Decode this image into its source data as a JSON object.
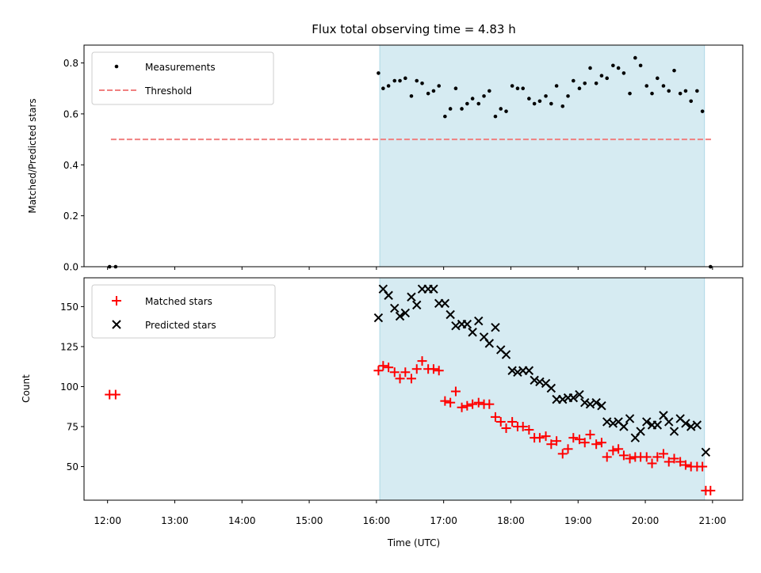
{
  "title": "Flux total observing time = 4.83 h",
  "xlabel": "Time (UTC)",
  "x_ticks": [
    "12:00",
    "13:00",
    "14:00",
    "15:00",
    "16:00",
    "17:00",
    "18:00",
    "19:00",
    "20:00",
    "21:00"
  ],
  "colors": {
    "measurements": "#000000",
    "threshold": "#f08080",
    "matched": "#ff0000",
    "predicted": "#000000",
    "observing_window": "#add8e6"
  },
  "chart_data": [
    {
      "type": "scatter",
      "ylabel": "Matched/Predicted stars",
      "xlim": [
        11.65,
        21.45
      ],
      "ylim": [
        0,
        0.87
      ],
      "y_ticks": [
        0.0,
        0.2,
        0.4,
        0.6,
        0.8
      ],
      "y_tick_labels": [
        "0.0",
        "0.2",
        "0.4",
        "0.6",
        "0.8"
      ],
      "observing_window": [
        16.05,
        20.88
      ],
      "legend": {
        "placement": "upper-left",
        "entries": [
          "Measurements",
          "Threshold"
        ]
      },
      "threshold": {
        "name": "Threshold",
        "value": 0.5,
        "x_range": [
          12.05,
          20.98
        ]
      },
      "series": [
        {
          "name": "Measurements",
          "x": [
            12.03,
            12.12,
            16.03,
            16.1,
            16.18,
            16.27,
            16.35,
            16.43,
            16.52,
            16.6,
            16.68,
            16.77,
            16.85,
            16.93,
            17.02,
            17.1,
            17.18,
            17.27,
            17.35,
            17.43,
            17.52,
            17.6,
            17.68,
            17.77,
            17.85,
            17.93,
            18.02,
            18.1,
            18.18,
            18.27,
            18.35,
            18.43,
            18.52,
            18.6,
            18.68,
            18.77,
            18.85,
            18.93,
            19.02,
            19.1,
            19.18,
            19.27,
            19.35,
            19.43,
            19.52,
            19.6,
            19.68,
            19.77,
            19.85,
            19.93,
            20.02,
            20.1,
            20.18,
            20.27,
            20.35,
            20.43,
            20.52,
            20.6,
            20.68,
            20.77,
            20.85,
            20.97
          ],
          "y": [
            0.0,
            0.0,
            0.76,
            0.7,
            0.71,
            0.73,
            0.73,
            0.74,
            0.67,
            0.73,
            0.72,
            0.68,
            0.69,
            0.71,
            0.59,
            0.62,
            0.7,
            0.62,
            0.64,
            0.66,
            0.64,
            0.67,
            0.69,
            0.59,
            0.62,
            0.61,
            0.71,
            0.7,
            0.7,
            0.66,
            0.64,
            0.65,
            0.67,
            0.64,
            0.71,
            0.63,
            0.67,
            0.73,
            0.7,
            0.72,
            0.78,
            0.72,
            0.75,
            0.74,
            0.79,
            0.78,
            0.76,
            0.68,
            0.82,
            0.79,
            0.71,
            0.68,
            0.74,
            0.71,
            0.69,
            0.77,
            0.68,
            0.69,
            0.65,
            0.69,
            0.61,
            0.0
          ]
        }
      ]
    },
    {
      "type": "scatter",
      "ylabel": "Count",
      "xlim": [
        11.65,
        21.45
      ],
      "ylim": [
        29,
        168
      ],
      "y_ticks": [
        50,
        75,
        100,
        125,
        150
      ],
      "y_tick_labels": [
        "50",
        "75",
        "100",
        "125",
        "150"
      ],
      "observing_window": [
        16.05,
        20.88
      ],
      "legend": {
        "placement": "upper-left",
        "entries": [
          "Matched stars",
          "Predicted stars"
        ]
      },
      "series": [
        {
          "name": "Matched stars",
          "marker": "plus",
          "x": [
            12.03,
            12.12,
            16.03,
            16.1,
            16.18,
            16.27,
            16.35,
            16.43,
            16.52,
            16.6,
            16.68,
            16.77,
            16.85,
            16.93,
            17.02,
            17.1,
            17.18,
            17.27,
            17.35,
            17.43,
            17.52,
            17.6,
            17.68,
            17.77,
            17.85,
            17.93,
            18.02,
            18.1,
            18.18,
            18.27,
            18.35,
            18.43,
            18.52,
            18.6,
            18.68,
            18.77,
            18.85,
            18.93,
            19.02,
            19.1,
            19.18,
            19.27,
            19.35,
            19.43,
            19.52,
            19.6,
            19.68,
            19.77,
            19.85,
            19.93,
            20.02,
            20.1,
            20.18,
            20.27,
            20.35,
            20.43,
            20.52,
            20.6,
            20.68,
            20.77,
            20.85,
            20.9,
            20.97
          ],
          "y": [
            95,
            95,
            110,
            113,
            112,
            109,
            105,
            109,
            105,
            111,
            116,
            111,
            111,
            110,
            91,
            90,
            97,
            87,
            88,
            89,
            90,
            89,
            89,
            81,
            78,
            74,
            78,
            75,
            75,
            73,
            68,
            68,
            69,
            64,
            66,
            58,
            61,
            68,
            67,
            65,
            70,
            64,
            65,
            56,
            60,
            61,
            57,
            55,
            56,
            56,
            56,
            52,
            56,
            58,
            53,
            55,
            53,
            51,
            50,
            50,
            50,
            35,
            35
          ]
        },
        {
          "name": "Predicted stars",
          "marker": "x",
          "x": [
            16.03,
            16.1,
            16.18,
            16.27,
            16.35,
            16.43,
            16.52,
            16.6,
            16.68,
            16.77,
            16.85,
            16.93,
            17.02,
            17.1,
            17.18,
            17.27,
            17.35,
            17.43,
            17.52,
            17.6,
            17.68,
            17.77,
            17.85,
            17.93,
            18.02,
            18.1,
            18.18,
            18.27,
            18.35,
            18.43,
            18.52,
            18.6,
            18.68,
            18.77,
            18.85,
            18.93,
            19.02,
            19.1,
            19.18,
            19.27,
            19.35,
            19.43,
            19.52,
            19.6,
            19.68,
            19.77,
            19.85,
            19.93,
            20.02,
            20.1,
            20.18,
            20.27,
            20.35,
            20.43,
            20.52,
            20.6,
            20.68,
            20.77,
            20.9
          ],
          "y": [
            143,
            161,
            157,
            149,
            144,
            146,
            156,
            151,
            161,
            161,
            161,
            152,
            152,
            145,
            138,
            139,
            139,
            134,
            141,
            131,
            127,
            137,
            123,
            120,
            110,
            109,
            110,
            110,
            104,
            103,
            102,
            99,
            92,
            92,
            93,
            93,
            95,
            90,
            89,
            90,
            88,
            78,
            77,
            78,
            75,
            80,
            68,
            72,
            78,
            76,
            76,
            82,
            78,
            72,
            80,
            77,
            75,
            76,
            59
          ]
        }
      ]
    }
  ]
}
